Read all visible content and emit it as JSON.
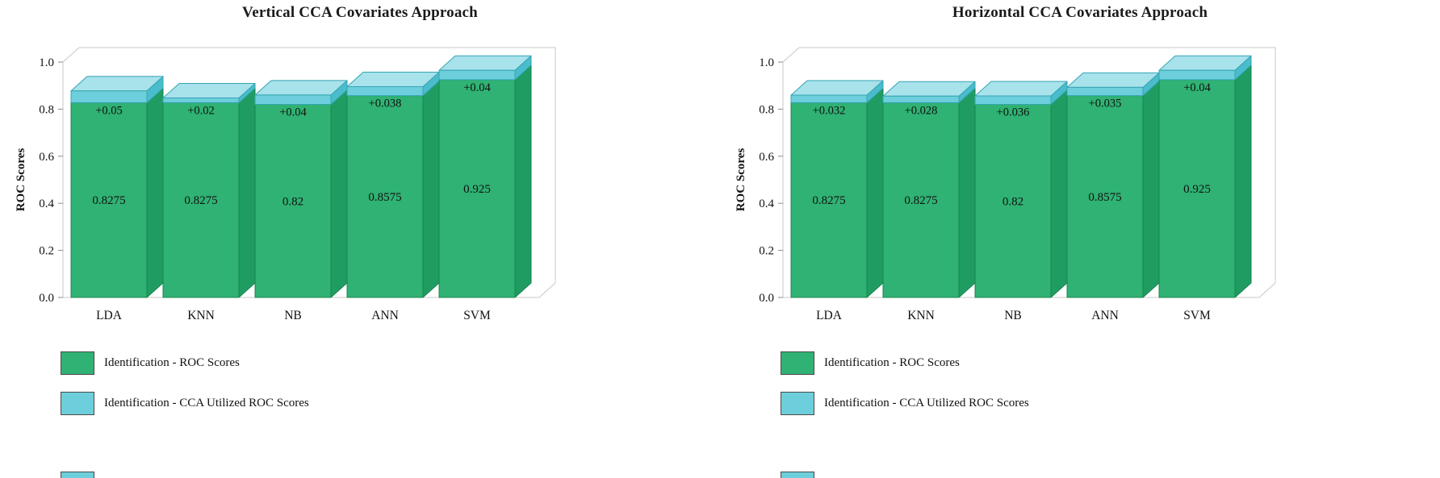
{
  "chart_data": [
    {
      "type": "bar",
      "style": "3d-stacked-column",
      "title": "Vertical CCA Covariates Approach",
      "ylabel": "ROC Scores",
      "xlabel": "",
      "categories": [
        "LDA",
        "KNN",
        "NB",
        "ANN",
        "SVM"
      ],
      "series": [
        {
          "name": "Identification - ROC Scores",
          "values": [
            0.8275,
            0.8275,
            0.82,
            0.8575,
            0.925
          ],
          "labels": [
            "0.8275",
            "0.8275",
            "0.82",
            "0.8575",
            "0.925"
          ]
        },
        {
          "name": "Identification - CCA Utilized ROC Scores",
          "values": [
            0.05,
            0.02,
            0.04,
            0.038,
            0.04
          ],
          "labels": [
            "+0.05",
            "+0.02",
            "+0.04",
            "+0.038",
            "+0.04"
          ]
        }
      ],
      "yticks": [
        "0.0",
        "0.2",
        "0.4",
        "0.6",
        "0.8",
        "1.0"
      ],
      "ylim": [
        0,
        1.0
      ],
      "grid": false,
      "legend_position": "bottom-left"
    },
    {
      "type": "bar",
      "style": "3d-stacked-column",
      "title": "Horizontal CCA Covariates Approach",
      "ylabel": "ROC Scores",
      "xlabel": "",
      "categories": [
        "LDA",
        "KNN",
        "NB",
        "ANN",
        "SVM"
      ],
      "series": [
        {
          "name": "Identification - ROC Scores",
          "values": [
            0.8275,
            0.8275,
            0.82,
            0.8575,
            0.925
          ],
          "labels": [
            "0.8275",
            "0.8275",
            "0.82",
            "0.8575",
            "0.925"
          ]
        },
        {
          "name": "Identification - CCA Utilized ROC Scores",
          "values": [
            0.032,
            0.028,
            0.036,
            0.035,
            0.04
          ],
          "labels": [
            "+0.032",
            "+0.028",
            "+0.036",
            "+0.035",
            "+0.04"
          ]
        }
      ],
      "yticks": [
        "0.0",
        "0.2",
        "0.4",
        "0.6",
        "0.8",
        "1.0"
      ],
      "ylim": [
        0,
        1.0
      ],
      "grid": false,
      "legend_position": "bottom-left"
    }
  ],
  "colors": {
    "green_front": "#2FB273",
    "green_side": "#1F9C62",
    "green_edge": "#18854F",
    "cyan_front": "#6DCFDB",
    "cyan_side": "#4ABCCB",
    "cyan_top": "#A8E2EB",
    "cyan_edge": "#35A4B5",
    "frame": "#C8C8C8",
    "tick": "#8A8A8A",
    "text": "#111111"
  }
}
